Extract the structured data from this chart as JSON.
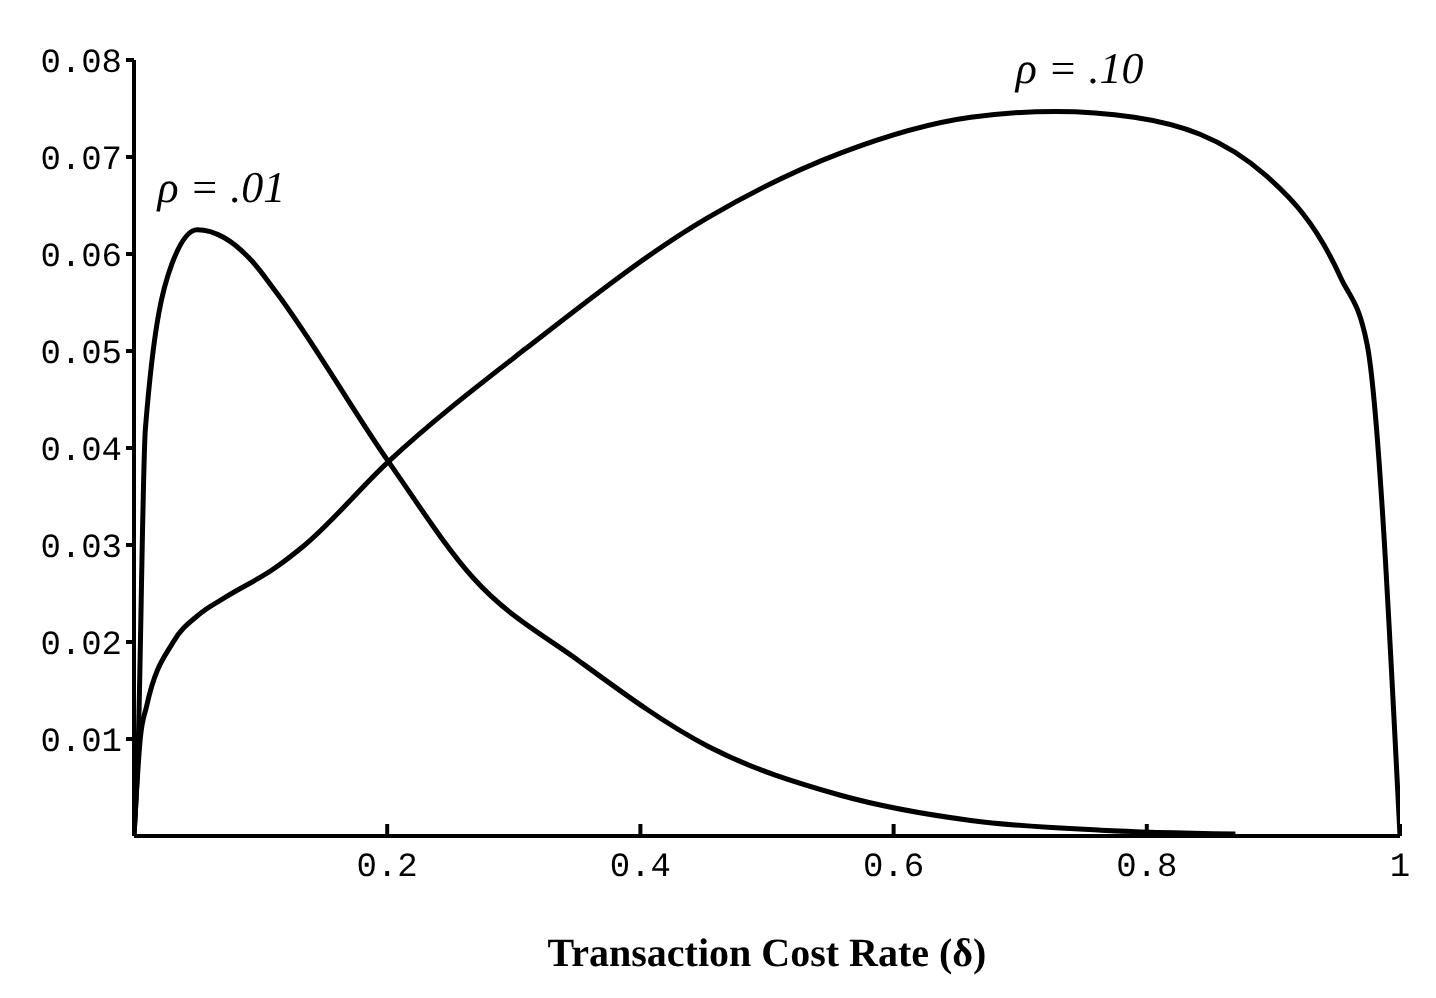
{
  "chart_data": {
    "type": "line",
    "xlabel": "Transaction Cost Rate (δ)",
    "xlim": [
      0,
      1
    ],
    "ylim": [
      0,
      0.08
    ],
    "xticks": [
      0.2,
      0.4,
      0.6,
      0.8,
      1
    ],
    "yticks": [
      0.01,
      0.02,
      0.03,
      0.04,
      0.05,
      0.06,
      0.07,
      0.08
    ],
    "marker": "none",
    "line_style": "solid",
    "grid": false,
    "series": [
      {
        "name": "ρ = .01",
        "color": "#000000",
        "x": [
          0,
          0.003,
          0.009,
          0.03,
          0.05,
          0.071,
          0.093,
          0.111,
          0.201,
          0.268,
          0.351,
          0.454,
          0.558,
          0.661,
          0.764,
          0.87
        ],
        "values": [
          0,
          0.008,
          0.042,
          0.059,
          0.0625,
          0.0617,
          0.0593,
          0.0563,
          0.0386,
          0.0266,
          0.0181,
          0.0092,
          0.0042,
          0.0016,
          0.0006,
          0.0002
        ]
      },
      {
        "name": "ρ = .10",
        "color": "#000000",
        "x": [
          0,
          0.005,
          0.01,
          0.031,
          0.051,
          0.072,
          0.111,
          0.134,
          0.201,
          0.31,
          0.454,
          0.558,
          0.661,
          0.728,
          0.79,
          0.894,
          0.953,
          0.974,
          1
        ],
        "values": [
          0,
          0.0101,
          0.0134,
          0.02,
          0.0228,
          0.0246,
          0.0276,
          0.0299,
          0.0386,
          0.0503,
          0.0638,
          0.0704,
          0.0741,
          0.0747,
          0.0741,
          0.0681,
          0.0576,
          0.0507,
          0
        ]
      }
    ]
  }
}
